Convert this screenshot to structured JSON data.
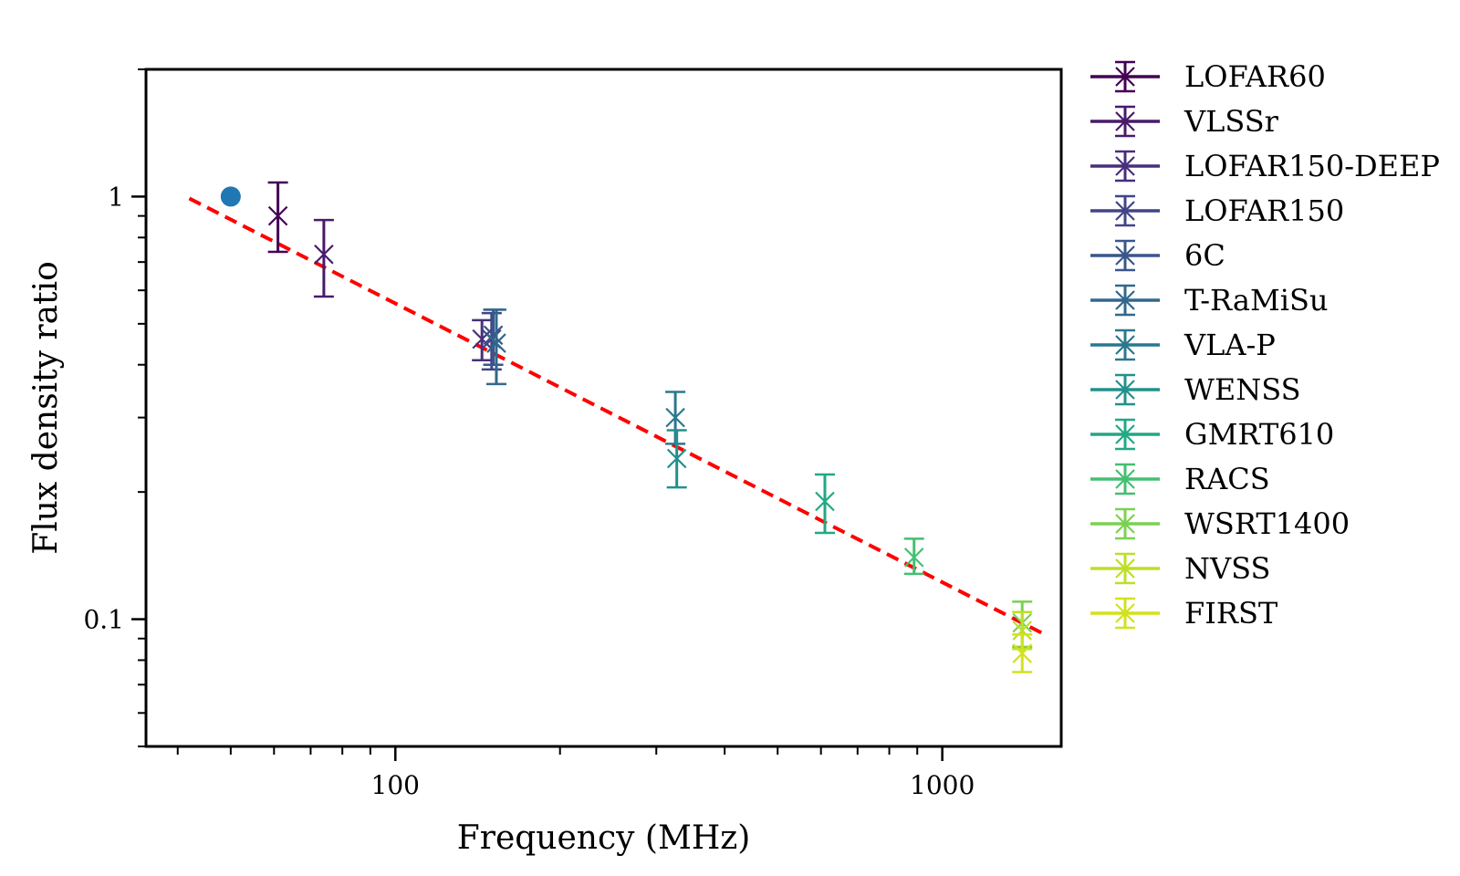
{
  "chart_data": {
    "type": "scatter",
    "title": "",
    "xlabel": "Frequency (MHz)",
    "ylabel": "Flux density ratio",
    "xscale": "log",
    "yscale": "log",
    "xlim": [
      35,
      1650
    ],
    "ylim": [
      0.05,
      2.0
    ],
    "x_tick_labels": [
      {
        "value": 100,
        "label": "100"
      },
      {
        "value": 1000,
        "label": "1000"
      }
    ],
    "y_tick_labels": [
      {
        "value": 1,
        "label": "1"
      },
      {
        "value": 0.1,
        "label": "0.1"
      }
    ],
    "reference_point": {
      "x": 50,
      "y": 1.0,
      "color": "#1f77b4"
    },
    "fit_line": {
      "x": [
        42,
        1540
      ],
      "y": [
        0.99,
        0.092
      ],
      "color": "#ff0000",
      "style": "dashed"
    },
    "legend_position": "outside-right",
    "series": [
      {
        "name": "LOFAR60",
        "color": "#440154",
        "points": [
          {
            "x": 61,
            "y": 0.9,
            "lo": 0.74,
            "hi": 1.08
          }
        ]
      },
      {
        "name": "VLSSr",
        "color": "#481a6c",
        "points": [
          {
            "x": 74,
            "y": 0.73,
            "lo": 0.58,
            "hi": 0.88
          }
        ]
      },
      {
        "name": "LOFAR150-DEEP",
        "color": "#472f7d",
        "points": [
          {
            "x": 144,
            "y": 0.46,
            "lo": 0.41,
            "hi": 0.51
          }
        ]
      },
      {
        "name": "LOFAR150",
        "color": "#414487",
        "points": [
          {
            "x": 150,
            "y": 0.46,
            "lo": 0.39,
            "hi": 0.53
          }
        ]
      },
      {
        "name": "6C",
        "color": "#39568c",
        "points": [
          {
            "x": 151,
            "y": 0.47,
            "lo": 0.4,
            "hi": 0.54
          }
        ]
      },
      {
        "name": "T-RaMiSu",
        "color": "#31688e",
        "points": [
          {
            "x": 153,
            "y": 0.45,
            "lo": 0.36,
            "hi": 0.54
          }
        ]
      },
      {
        "name": "VLA-P",
        "color": "#2a788e",
        "points": [
          {
            "x": 325,
            "y": 0.3,
            "lo": 0.26,
            "hi": 0.345
          }
        ]
      },
      {
        "name": "WENSS",
        "color": "#21918c",
        "points": [
          {
            "x": 327,
            "y": 0.24,
            "lo": 0.205,
            "hi": 0.28
          }
        ]
      },
      {
        "name": "GMRT610",
        "color": "#22a884",
        "points": [
          {
            "x": 610,
            "y": 0.19,
            "lo": 0.16,
            "hi": 0.22
          }
        ]
      },
      {
        "name": "RACS",
        "color": "#44bf70",
        "points": [
          {
            "x": 888,
            "y": 0.14,
            "lo": 0.128,
            "hi": 0.155
          }
        ]
      },
      {
        "name": "WSRT1400",
        "color": "#7ad151",
        "points": [
          {
            "x": 1400,
            "y": 0.098,
            "lo": 0.086,
            "hi": 0.11
          }
        ]
      },
      {
        "name": "NVSS",
        "color": "#bddf26",
        "points": [
          {
            "x": 1400,
            "y": 0.094,
            "lo": 0.085,
            "hi": 0.104
          }
        ]
      },
      {
        "name": "FIRST",
        "color": "#d2e21b",
        "points": [
          {
            "x": 1400,
            "y": 0.083,
            "lo": 0.075,
            "hi": 0.092
          }
        ]
      }
    ]
  }
}
